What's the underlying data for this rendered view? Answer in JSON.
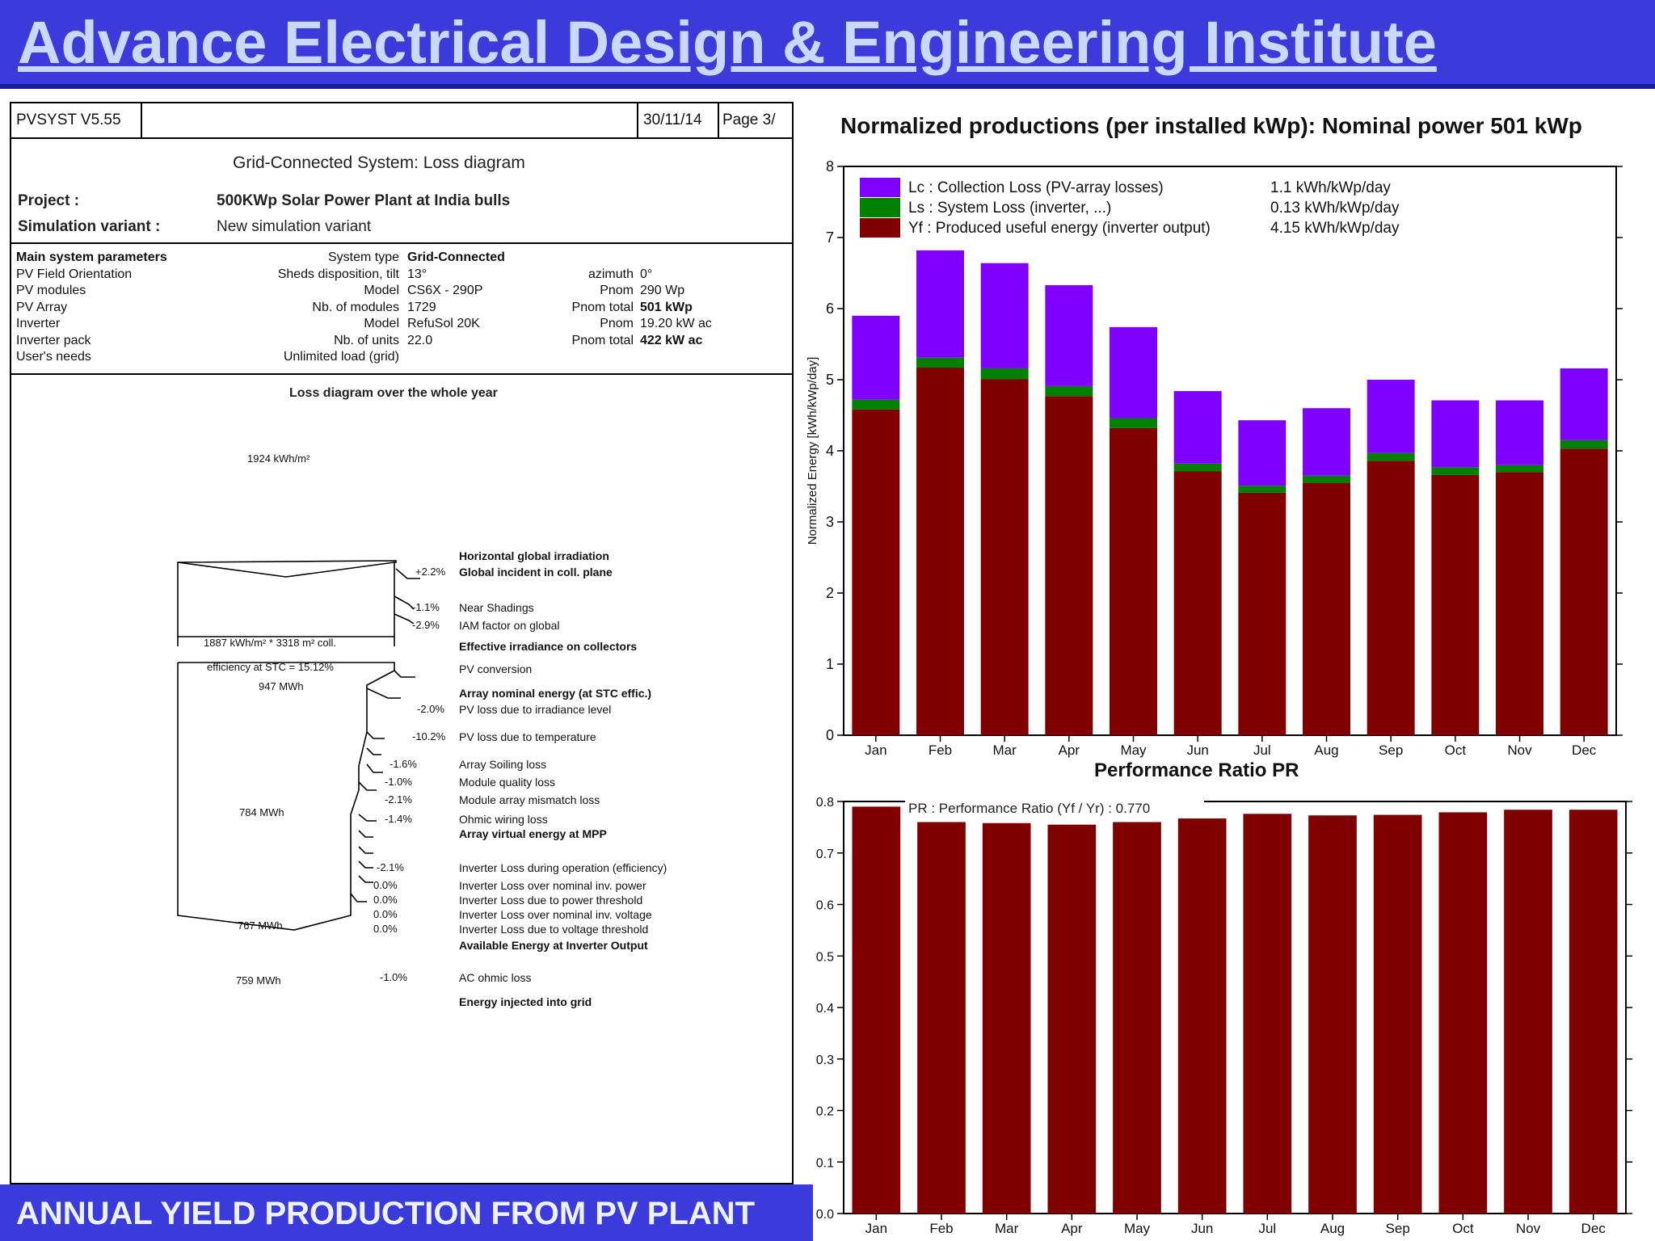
{
  "header": {
    "title": "Advance Electrical Design & Engineering Institute"
  },
  "footer": {
    "caption": "ANNUAL YIELD  PRODUCTION FROM PV PLANT"
  },
  "report": {
    "software": "PVSYST V5.55",
    "date": "30/11/14",
    "page": "Page 3/",
    "title": "Grid-Connected System: Loss diagram",
    "project_label": "Project  :",
    "project_value": "500KWp Solar Power Plant at India bulls",
    "variant_label": "Simulation variant  :",
    "variant_value": "New simulation variant",
    "params": [
      {
        "label": "Main system parameters",
        "key": "System type",
        "value": "Grid-Connected",
        "key2": "",
        "value2": ""
      },
      {
        "label": "PV Field Orientation",
        "key": "Sheds disposition, tilt",
        "value": "13°",
        "key2": "azimuth",
        "value2": "0°"
      },
      {
        "label": "PV modules",
        "key": "Model",
        "value": "CS6X - 290P",
        "key2": "Pnom",
        "value2": "290 Wp"
      },
      {
        "label": "PV Array",
        "key": "Nb. of modules",
        "value": "1729",
        "key2": "Pnom total",
        "value2": "501 kWp"
      },
      {
        "label": "Inverter",
        "key": "Model",
        "value": "RefuSol 20K",
        "key2": "Pnom",
        "value2": "19.20 kW ac"
      },
      {
        "label": "Inverter pack",
        "key": "Nb. of units",
        "value": "22.0",
        "key2": "Pnom total",
        "value2": "422 kW ac"
      },
      {
        "label": "User's needs",
        "key": "Unlimited load (grid)",
        "value": "",
        "key2": "",
        "value2": ""
      }
    ],
    "loss_title": "Loss diagram over the whole year",
    "values": {
      "irr": "1924 kWh/m²",
      "eff_irr": "1887 kWh/m² * 3318 m² coll.",
      "efficiency": "efficiency at STC = 15.12%",
      "array_nom": "947 MWh",
      "array_mpp": "784 MWh",
      "inv_out": "767 MWh",
      "grid": "759 MWh"
    },
    "losses": [
      {
        "pct": "",
        "text": "Horizontal global irradiation",
        "bold": true
      },
      {
        "pct": "+2.2%",
        "text": "Global incident in coll. plane",
        "bold": true
      },
      {
        "pct": "-1.1%",
        "text": "Near Shadings",
        "bold": false
      },
      {
        "pct": "-2.9%",
        "text": "IAM factor on global",
        "bold": false
      },
      {
        "pct": "",
        "text": "Effective irradiance on collectors",
        "bold": true
      },
      {
        "pct": "",
        "text": "PV conversion",
        "bold": false
      },
      {
        "pct": "",
        "text": "Array nominal energy (at STC effic.)",
        "bold": true
      },
      {
        "pct": "-2.0%",
        "text": "PV loss due to irradiance level",
        "bold": false
      },
      {
        "pct": "-10.2%",
        "text": "PV loss due to temperature",
        "bold": false
      },
      {
        "pct": "-1.6%",
        "text": "Array Soiling loss",
        "bold": false
      },
      {
        "pct": "-1.0%",
        "text": "Module quality loss",
        "bold": false
      },
      {
        "pct": "-2.1%",
        "text": "Module array mismatch loss",
        "bold": false
      },
      {
        "pct": "-1.4%",
        "text": "Ohmic wiring loss",
        "bold": false
      },
      {
        "pct": "",
        "text": "Array virtual energy at MPP",
        "bold": true
      },
      {
        "pct": "-2.1%",
        "text": "Inverter Loss during operation (efficiency)",
        "bold": false
      },
      {
        "pct": "0.0%",
        "text": "Inverter Loss over nominal inv. power",
        "bold": false
      },
      {
        "pct": "0.0%",
        "text": "Inverter Loss due to power threshold",
        "bold": false
      },
      {
        "pct": "0.0%",
        "text": "Inverter Loss over nominal inv. voltage",
        "bold": false
      },
      {
        "pct": "0.0%",
        "text": "Inverter Loss due to voltage threshold",
        "bold": false
      },
      {
        "pct": "",
        "text": "Available Energy at Inverter Output",
        "bold": true
      },
      {
        "pct": "-1.0%",
        "text": "AC ohmic loss",
        "bold": false
      },
      {
        "pct": "",
        "text": "Energy injected into grid",
        "bold": true
      }
    ]
  },
  "chart_data": [
    {
      "type": "bar",
      "title": "Normalized productions (per installed kWp):  Nominal power 501 kWp",
      "ylabel": "Normalized Energy  [kWh/kWp/day]",
      "ylim": [
        0,
        8
      ],
      "yticks": [
        0,
        1,
        2,
        3,
        4,
        5,
        6,
        7,
        8
      ],
      "categories": [
        "Jan",
        "Feb",
        "Mar",
        "Apr",
        "May",
        "Jun",
        "Jul",
        "Aug",
        "Sep",
        "Oct",
        "Nov",
        "Dec"
      ],
      "stacked": true,
      "series": [
        {
          "name": "Yf : Produced useful energy  (inverter output)",
          "color": "#800000",
          "summary": "4.15 kWh/kWp/day",
          "values": [
            4.58,
            5.17,
            5.01,
            4.77,
            4.32,
            3.71,
            3.41,
            3.55,
            3.86,
            3.66,
            3.7,
            4.03
          ]
        },
        {
          "name": "Ls : System Loss  (inverter, ...)",
          "color": "#008000",
          "summary": "0.13 kWh/kWp/day",
          "values": [
            0.14,
            0.14,
            0.15,
            0.14,
            0.14,
            0.11,
            0.1,
            0.1,
            0.11,
            0.11,
            0.1,
            0.12
          ]
        },
        {
          "name": "Lc : Collection Loss (PV-array losses)",
          "color": "#8000ff",
          "summary": "1.1 kWh/kWp/day",
          "values": [
            1.18,
            1.51,
            1.48,
            1.42,
            1.28,
            1.02,
            0.92,
            0.95,
            1.03,
            0.94,
            0.91,
            1.01
          ]
        }
      ],
      "legend": "top-left",
      "grid": false
    },
    {
      "type": "bar",
      "title": "Performance Ratio PR",
      "ylim": [
        0,
        0.8
      ],
      "yticks": [
        0.0,
        0.1,
        0.2,
        0.3,
        0.4,
        0.5,
        0.6,
        0.7,
        0.8
      ],
      "categories": [
        "Jan",
        "Feb",
        "Mar",
        "Apr",
        "May",
        "Jun",
        "Jul",
        "Aug",
        "Sep",
        "Oct",
        "Nov",
        "Dec"
      ],
      "series": [
        {
          "name": "PR : Performance Ratio (Yf / Yr) :  0.770",
          "color": "#800000",
          "values": [
            0.79,
            0.76,
            0.758,
            0.755,
            0.76,
            0.767,
            0.776,
            0.773,
            0.774,
            0.779,
            0.784,
            0.784
          ]
        }
      ],
      "legend": "top-left",
      "grid": false
    }
  ]
}
